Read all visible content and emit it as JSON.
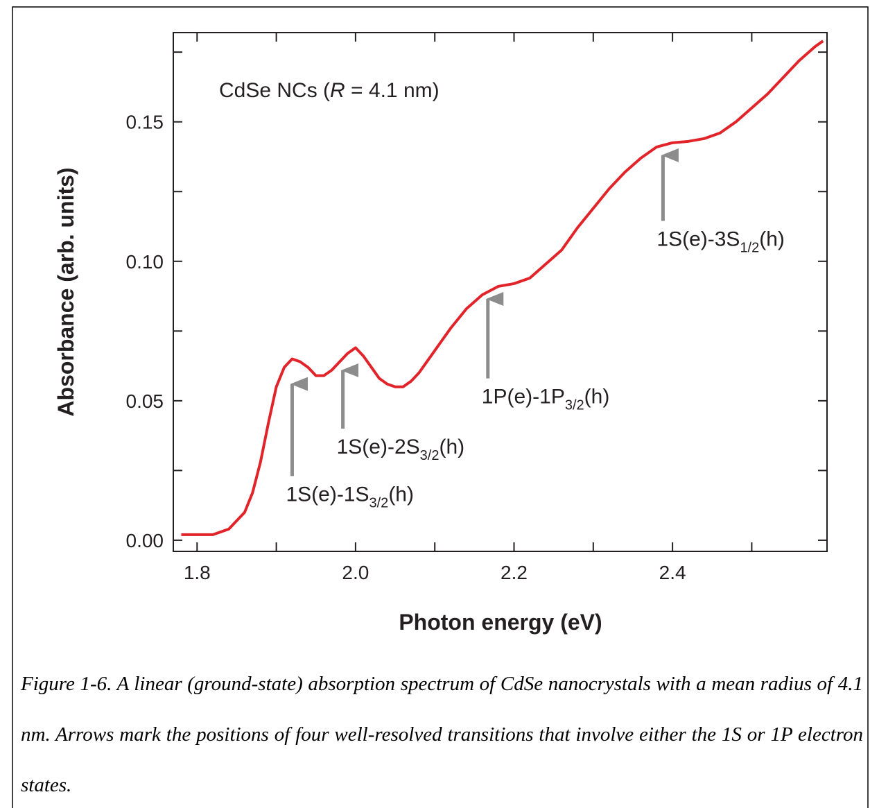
{
  "chart_data": {
    "type": "line",
    "title": {
      "before": "CdSe NCs (",
      "italic": "R",
      "after": " = 4.1 nm)"
    },
    "x_label": "Photon energy (eV)",
    "y_label": "Absorbance (arb. units)",
    "x": [
      1.78,
      1.8,
      1.82,
      1.84,
      1.86,
      1.87,
      1.88,
      1.89,
      1.9,
      1.91,
      1.92,
      1.93,
      1.94,
      1.95,
      1.96,
      1.97,
      1.98,
      1.99,
      2.0,
      2.01,
      2.02,
      2.03,
      2.04,
      2.05,
      2.06,
      2.07,
      2.08,
      2.09,
      2.1,
      2.12,
      2.14,
      2.16,
      2.18,
      2.2,
      2.22,
      2.24,
      2.26,
      2.28,
      2.3,
      2.32,
      2.34,
      2.36,
      2.38,
      2.4,
      2.42,
      2.44,
      2.46,
      2.48,
      2.5,
      2.52,
      2.54,
      2.56,
      2.58,
      2.59
    ],
    "series": [
      {
        "name": "CdSe NCs",
        "color": "#e0242a",
        "values": [
          0.002,
          0.002,
          0.002,
          0.004,
          0.01,
          0.017,
          0.028,
          0.042,
          0.055,
          0.062,
          0.065,
          0.064,
          0.062,
          0.059,
          0.059,
          0.061,
          0.064,
          0.067,
          0.069,
          0.066,
          0.062,
          0.058,
          0.056,
          0.055,
          0.055,
          0.057,
          0.06,
          0.064,
          0.068,
          0.076,
          0.083,
          0.088,
          0.091,
          0.092,
          0.094,
          0.099,
          0.104,
          0.112,
          0.119,
          0.126,
          0.132,
          0.137,
          0.141,
          0.1425,
          0.143,
          0.144,
          0.146,
          0.15,
          0.155,
          0.16,
          0.166,
          0.172,
          0.177,
          0.179
        ]
      }
    ],
    "xlim": [
      1.77,
      2.595
    ],
    "ylim": [
      -0.004,
      0.182
    ],
    "xticks": [
      1.8,
      {
        "value": 2,
        "label": "2.0"
      },
      2.2,
      2.4
    ],
    "xminor_ticks": [
      1.9,
      2.1,
      2.3,
      2.5
    ],
    "yticks": [
      {
        "value": 0,
        "label": "0.00"
      },
      0.05,
      {
        "value": 0.1,
        "label": "0.10"
      },
      0.15
    ],
    "yminor_ticks": [
      0.025,
      0.075,
      0.125,
      0.175
    ],
    "annotations": [
      {
        "text": "1S(e)-1S",
        "sub": "3/2",
        "tail": "(h)",
        "x": 1.92,
        "y": 0.0585,
        "y_from": 0.023
      },
      {
        "text": "1S(e)-2S",
        "sub": "3/2",
        "tail": "(h)",
        "x": 1.984,
        "y": 0.0634,
        "y_from": 0.04
      },
      {
        "text": "1P(e)-1P",
        "sub": "3/2",
        "tail": "(h)",
        "x": 2.167,
        "y": 0.089,
        "y_from": 0.058
      },
      {
        "text": "1S(e)-3S",
        "sub": "1/2",
        "tail": "(h)",
        "x": 2.388,
        "y": 0.1405,
        "y_from": 0.1145
      }
    ]
  },
  "caption": "Figure 1-6. A linear (ground-state) absorption spectrum of CdSe nanocrystals with a mean radius of 4.1 nm. Arrows mark the positions of four well-resolved transitions that involve either the 1S or 1P electron states."
}
